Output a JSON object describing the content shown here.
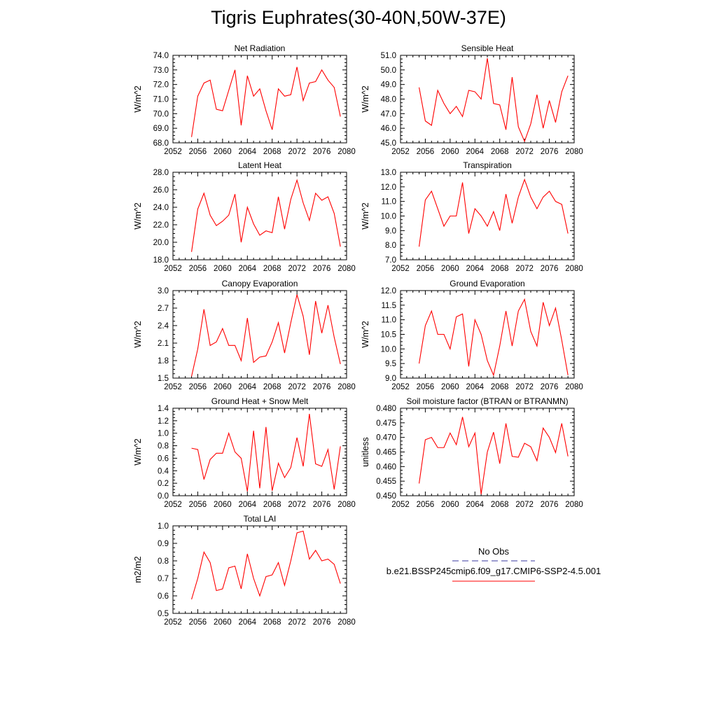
{
  "figure": {
    "title": "Tigris Euphrates(30-40N,50W-37E)"
  },
  "legend": {
    "obs_label": "No Obs",
    "model_label": "b.e21.BSSP245cmip6.f09_g17.CMIP6-SSP2-4.5.001",
    "obs_color": "#3a3aa0",
    "model_color": "#ff0000"
  },
  "chart_data": [
    {
      "type": "line",
      "title": "Net Radiation",
      "ylabel": "W/m^2",
      "xlim": [
        2052,
        2080
      ],
      "xticks": [
        "2052",
        "2056",
        "2060",
        "2064",
        "2068",
        "2072",
        "2076",
        "2080"
      ],
      "ylim": [
        68.0,
        74.0
      ],
      "yticks": [
        "68.0",
        "69.0",
        "70.0",
        "71.0",
        "72.0",
        "73.0",
        "74.0"
      ],
      "x": [
        2055,
        2056,
        2057,
        2058,
        2059,
        2060,
        2061,
        2062,
        2063,
        2064,
        2065,
        2066,
        2067,
        2068,
        2069,
        2070,
        2071,
        2072,
        2073,
        2074,
        2075,
        2076,
        2077,
        2078,
        2079
      ],
      "series": [
        {
          "values": [
            68.4,
            71.2,
            72.1,
            72.3,
            70.3,
            70.2,
            71.6,
            73.0,
            69.2,
            72.6,
            71.2,
            71.7,
            70.2,
            68.9,
            71.7,
            71.2,
            71.3,
            73.2,
            70.9,
            72.1,
            72.2,
            73.0,
            72.3,
            71.8,
            69.8
          ],
          "color": "#ff0000"
        }
      ]
    },
    {
      "type": "line",
      "title": "Sensible Heat",
      "ylabel": "W/m^2",
      "xlim": [
        2052,
        2080
      ],
      "xticks": [
        "2052",
        "2056",
        "2060",
        "2064",
        "2068",
        "2072",
        "2076",
        "2080"
      ],
      "ylim": [
        45.0,
        51.0
      ],
      "yticks": [
        "45.0",
        "46.0",
        "47.0",
        "48.0",
        "49.0",
        "50.0",
        "51.0"
      ],
      "x": [
        2055,
        2056,
        2057,
        2058,
        2059,
        2060,
        2061,
        2062,
        2063,
        2064,
        2065,
        2066,
        2067,
        2068,
        2069,
        2070,
        2071,
        2072,
        2073,
        2074,
        2075,
        2076,
        2077,
        2078,
        2079
      ],
      "series": [
        {
          "values": [
            48.8,
            46.5,
            46.2,
            48.6,
            47.7,
            47.0,
            47.5,
            46.8,
            48.6,
            48.5,
            48.0,
            50.8,
            47.7,
            47.6,
            45.9,
            49.5,
            46.1,
            45.1,
            46.3,
            48.3,
            46.0,
            47.9,
            46.4,
            48.5,
            49.6
          ],
          "color": "#ff0000"
        }
      ]
    },
    {
      "type": "line",
      "title": "Latent Heat",
      "ylabel": "W/m^2",
      "xlim": [
        2052,
        2080
      ],
      "xticks": [
        "2052",
        "2056",
        "2060",
        "2064",
        "2068",
        "2072",
        "2076",
        "2080"
      ],
      "ylim": [
        18.0,
        28.0
      ],
      "yticks": [
        "18.0",
        "20.0",
        "22.0",
        "24.0",
        "26.0",
        "28.0"
      ],
      "x": [
        2055,
        2056,
        2057,
        2058,
        2059,
        2060,
        2061,
        2062,
        2063,
        2064,
        2065,
        2066,
        2067,
        2068,
        2069,
        2070,
        2071,
        2072,
        2073,
        2074,
        2075,
        2076,
        2077,
        2078,
        2079
      ],
      "series": [
        {
          "values": [
            18.9,
            23.8,
            25.6,
            23.1,
            21.9,
            22.4,
            23.1,
            25.5,
            20.0,
            24.0,
            22.1,
            20.8,
            21.3,
            21.1,
            25.2,
            21.5,
            24.9,
            27.1,
            24.5,
            22.5,
            25.6,
            24.8,
            25.2,
            23.3,
            19.5
          ],
          "color": "#ff0000"
        }
      ]
    },
    {
      "type": "line",
      "title": "Transpiration",
      "ylabel": "W/m^2",
      "xlim": [
        2052,
        2080
      ],
      "xticks": [
        "2052",
        "2056",
        "2060",
        "2064",
        "2068",
        "2072",
        "2076",
        "2080"
      ],
      "ylim": [
        7.0,
        13.0
      ],
      "yticks": [
        "7.0",
        "8.0",
        "9.0",
        "10.0",
        "11.0",
        "12.0",
        "13.0"
      ],
      "x": [
        2055,
        2056,
        2057,
        2058,
        2059,
        2060,
        2061,
        2062,
        2063,
        2064,
        2065,
        2066,
        2067,
        2068,
        2069,
        2070,
        2071,
        2072,
        2073,
        2074,
        2075,
        2076,
        2077,
        2078,
        2079
      ],
      "series": [
        {
          "values": [
            7.9,
            11.1,
            11.7,
            10.5,
            9.3,
            10.0,
            10.0,
            12.3,
            8.8,
            10.5,
            10.0,
            9.3,
            10.3,
            9.0,
            11.5,
            9.5,
            11.3,
            12.5,
            11.3,
            10.5,
            11.3,
            11.7,
            11.0,
            10.8,
            8.8
          ],
          "color": "#ff0000"
        }
      ]
    },
    {
      "type": "line",
      "title": "Canopy Evaporation",
      "ylabel": "W/m^2",
      "xlim": [
        2052,
        2080
      ],
      "xticks": [
        "2052",
        "2056",
        "2060",
        "2064",
        "2068",
        "2072",
        "2076",
        "2080"
      ],
      "ylim": [
        1.5,
        3.0
      ],
      "yticks": [
        "1.5",
        "1.8",
        "2.1",
        "2.4",
        "2.7",
        "3.0"
      ],
      "x": [
        2055,
        2056,
        2057,
        2058,
        2059,
        2060,
        2061,
        2062,
        2063,
        2064,
        2065,
        2066,
        2067,
        2068,
        2069,
        2070,
        2071,
        2072,
        2073,
        2074,
        2075,
        2076,
        2077,
        2078,
        2079
      ],
      "series": [
        {
          "values": [
            1.53,
            2.0,
            2.68,
            2.06,
            2.12,
            2.35,
            2.06,
            2.06,
            1.8,
            2.53,
            1.77,
            1.86,
            1.88,
            2.12,
            2.45,
            1.93,
            2.45,
            2.93,
            2.56,
            1.9,
            2.82,
            2.27,
            2.75,
            2.2,
            1.74
          ],
          "color": "#ff0000"
        }
      ]
    },
    {
      "type": "line",
      "title": "Ground Evaporation",
      "ylabel": "W/m^2",
      "xlim": [
        2052,
        2080
      ],
      "xticks": [
        "2052",
        "2056",
        "2060",
        "2064",
        "2068",
        "2072",
        "2076",
        "2080"
      ],
      "ylim": [
        9.0,
        12.0
      ],
      "yticks": [
        "9.0",
        "9.5",
        "10.0",
        "10.5",
        "11.0",
        "11.5",
        "12.0"
      ],
      "x": [
        2055,
        2056,
        2057,
        2058,
        2059,
        2060,
        2061,
        2062,
        2063,
        2064,
        2065,
        2066,
        2067,
        2068,
        2069,
        2070,
        2071,
        2072,
        2073,
        2074,
        2075,
        2076,
        2077,
        2078,
        2079
      ],
      "series": [
        {
          "values": [
            9.5,
            10.8,
            11.3,
            10.5,
            10.5,
            10.0,
            11.1,
            11.2,
            9.4,
            11.0,
            10.5,
            9.6,
            9.1,
            10.1,
            11.3,
            10.1,
            11.3,
            11.7,
            10.6,
            10.1,
            11.6,
            10.8,
            11.4,
            10.3,
            9.1
          ],
          "color": "#ff0000"
        }
      ]
    },
    {
      "type": "line",
      "title": "Ground Heat + Snow Melt",
      "ylabel": "W/m^2",
      "xlim": [
        2052,
        2080
      ],
      "xticks": [
        "2052",
        "2056",
        "2060",
        "2064",
        "2068",
        "2072",
        "2076",
        "2080"
      ],
      "ylim": [
        0.0,
        1.4
      ],
      "yticks": [
        "0.0",
        "0.2",
        "0.4",
        "0.6",
        "0.8",
        "1.0",
        "1.2",
        "1.4"
      ],
      "x": [
        2055,
        2056,
        2057,
        2058,
        2059,
        2060,
        2061,
        2062,
        2063,
        2064,
        2065,
        2066,
        2067,
        2068,
        2069,
        2070,
        2071,
        2072,
        2073,
        2074,
        2075,
        2076,
        2077,
        2078,
        2079
      ],
      "series": [
        {
          "values": [
            0.76,
            0.74,
            0.26,
            0.58,
            0.68,
            0.68,
            1.0,
            0.7,
            0.6,
            0.07,
            1.04,
            0.12,
            1.1,
            0.08,
            0.52,
            0.29,
            0.45,
            0.93,
            0.47,
            1.31,
            0.51,
            0.47,
            0.74,
            0.1,
            0.79
          ],
          "color": "#ff0000"
        }
      ]
    },
    {
      "type": "line",
      "title": "Soil moisture factor (BTRAN or BTRANMN)",
      "ylabel": "unitless",
      "xlim": [
        2052,
        2080
      ],
      "xticks": [
        "2052",
        "2056",
        "2060",
        "2064",
        "2068",
        "2072",
        "2076",
        "2080"
      ],
      "ylim": [
        0.45,
        0.48
      ],
      "yticks": [
        "0.450",
        "0.455",
        "0.460",
        "0.465",
        "0.470",
        "0.475",
        "0.480"
      ],
      "x": [
        2055,
        2056,
        2057,
        2058,
        2059,
        2060,
        2061,
        2062,
        2063,
        2064,
        2065,
        2066,
        2067,
        2068,
        2069,
        2070,
        2071,
        2072,
        2073,
        2074,
        2075,
        2076,
        2077,
        2078,
        2079
      ],
      "series": [
        {
          "values": [
            0.4542,
            0.4692,
            0.47,
            0.4665,
            0.4665,
            0.4715,
            0.4675,
            0.477,
            0.4668,
            0.4715,
            0.4505,
            0.465,
            0.4718,
            0.461,
            0.4748,
            0.4635,
            0.4632,
            0.468,
            0.4668,
            0.462,
            0.4732,
            0.47,
            0.4648,
            0.4748,
            0.4635
          ],
          "color": "#ff0000"
        }
      ]
    },
    {
      "type": "line",
      "title": "Total LAI",
      "ylabel": "m2/m2",
      "xlim": [
        2052,
        2080
      ],
      "xticks": [
        "2052",
        "2056",
        "2060",
        "2064",
        "2068",
        "2072",
        "2076",
        "2080"
      ],
      "ylim": [
        0.5,
        1.0
      ],
      "yticks": [
        "0.5",
        "0.6",
        "0.7",
        "0.8",
        "0.9",
        "1.0"
      ],
      "x": [
        2055,
        2056,
        2057,
        2058,
        2059,
        2060,
        2061,
        2062,
        2063,
        2064,
        2065,
        2066,
        2067,
        2068,
        2069,
        2070,
        2071,
        2072,
        2073,
        2074,
        2075,
        2076,
        2077,
        2078,
        2079
      ],
      "series": [
        {
          "values": [
            0.58,
            0.7,
            0.85,
            0.79,
            0.63,
            0.64,
            0.76,
            0.77,
            0.64,
            0.84,
            0.7,
            0.6,
            0.71,
            0.72,
            0.79,
            0.66,
            0.8,
            0.96,
            0.97,
            0.81,
            0.86,
            0.8,
            0.81,
            0.78,
            0.67
          ],
          "color": "#ff0000"
        }
      ]
    }
  ]
}
